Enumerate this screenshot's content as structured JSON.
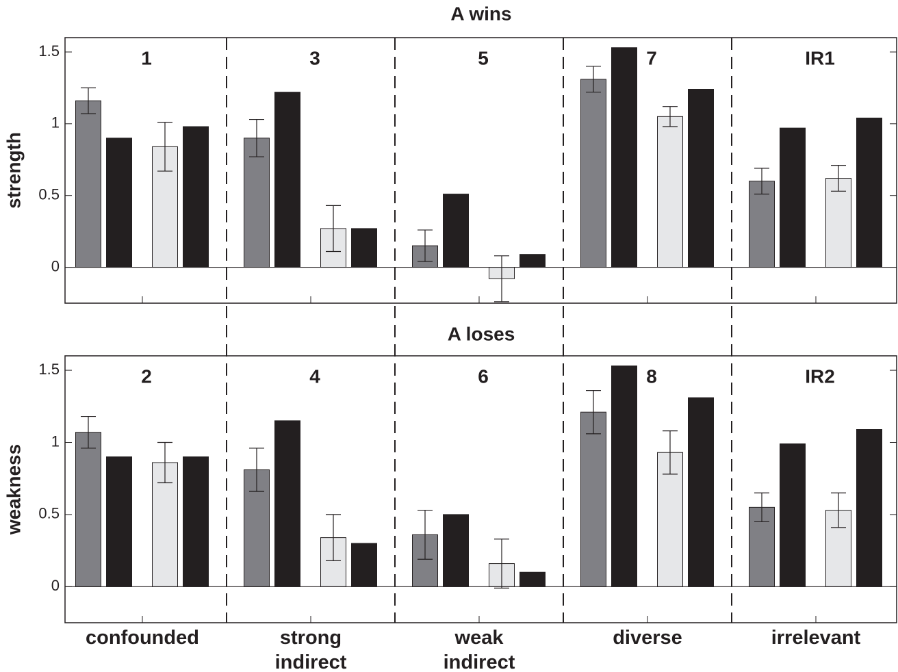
{
  "chart_data": [
    {
      "type": "bar",
      "title": "A wins",
      "ylabel": "strength",
      "panel_labels": [
        "1",
        "3",
        "5",
        "7",
        "IR1"
      ],
      "ylim": [
        -0.25,
        1.6
      ],
      "yticks": [
        0,
        0.5,
        1,
        1.5
      ],
      "series": [
        {
          "color": "#808085",
          "values": [
            1.16,
            0.9,
            0.15,
            1.31,
            0.6
          ],
          "errors": [
            0.09,
            0.13,
            0.11,
            0.09,
            0.09
          ]
        },
        {
          "color": "#231f20",
          "values": [
            0.9,
            1.22,
            0.51,
            1.53,
            0.97
          ]
        },
        {
          "color": "#e6e7e9",
          "values": [
            0.84,
            0.27,
            -0.08,
            1.05,
            0.62
          ],
          "errors": [
            0.17,
            0.16,
            0.16,
            0.07,
            0.09
          ]
        },
        {
          "color": "#231f20",
          "values": [
            0.98,
            0.27,
            0.09,
            1.24,
            1.04
          ]
        }
      ]
    },
    {
      "type": "bar",
      "title": "A loses",
      "ylabel": "weakness",
      "panel_labels": [
        "2",
        "4",
        "6",
        "8",
        "IR2"
      ],
      "categories": [
        "confounded",
        "strong\nindirect",
        "weak\nindirect",
        "diverse",
        "irrelevant"
      ],
      "ylim": [
        -0.25,
        1.6
      ],
      "yticks": [
        0,
        0.5,
        1,
        1.5
      ],
      "series": [
        {
          "color": "#808085",
          "values": [
            1.07,
            0.81,
            0.36,
            1.21,
            0.55
          ],
          "errors": [
            0.11,
            0.15,
            0.17,
            0.15,
            0.1
          ]
        },
        {
          "color": "#231f20",
          "values": [
            0.9,
            1.15,
            0.5,
            1.53,
            0.99
          ]
        },
        {
          "color": "#e6e7e9",
          "values": [
            0.86,
            0.34,
            0.16,
            0.93,
            0.53
          ],
          "errors": [
            0.14,
            0.16,
            0.17,
            0.15,
            0.12
          ]
        },
        {
          "color": "#231f20",
          "values": [
            0.9,
            0.3,
            0.1,
            1.31,
            1.09
          ]
        }
      ]
    }
  ]
}
